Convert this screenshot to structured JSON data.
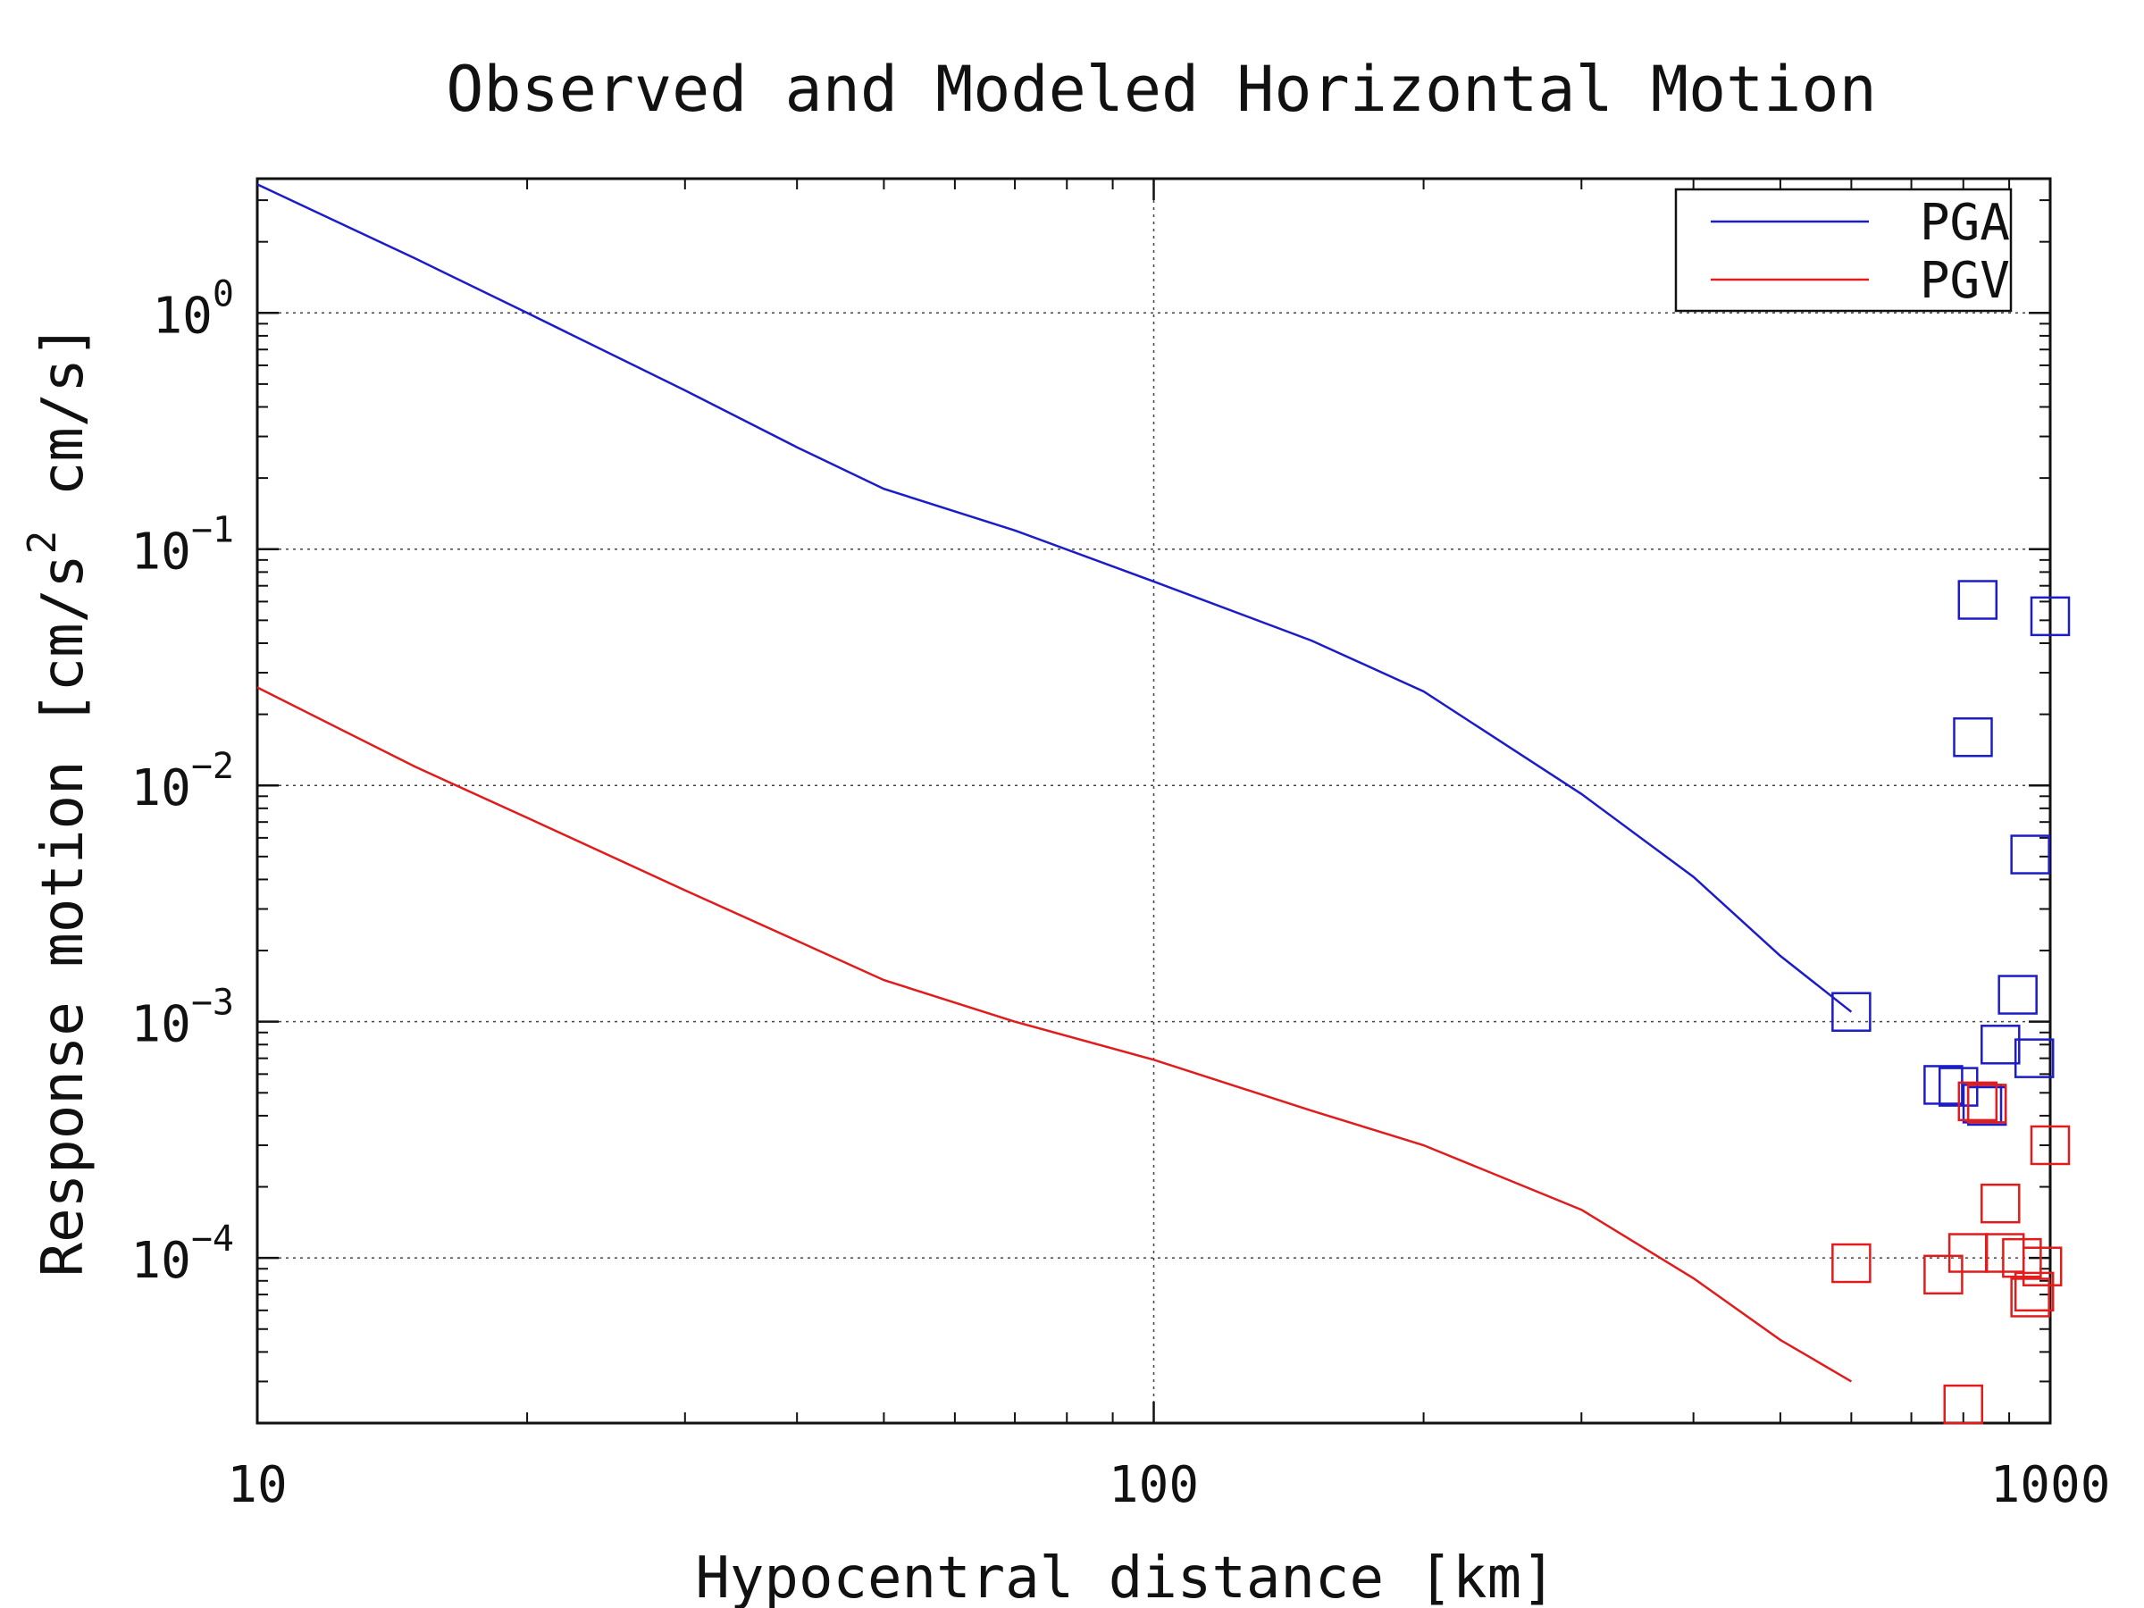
{
  "chart_data": {
    "type": "scatter",
    "title": "Observed and Modeled Horizontal Motion",
    "xlabel": "Hypocentral distance [km]",
    "ylabel": "Response motion [cm/s² cm/s]",
    "ylabel_parts": {
      "pre": "Response motion [cm/s",
      "sup": "2",
      "post": " cm/s]"
    },
    "x_scale": "log",
    "y_scale": "log",
    "xlim": [
      10,
      1000
    ],
    "ylim": [
      2e-05,
      3.7
    ],
    "x_ticks": [
      {
        "value": 10,
        "label": "10"
      },
      {
        "value": 100,
        "label": "100"
      },
      {
        "value": 1000,
        "label": "1000"
      }
    ],
    "y_ticks": [
      {
        "value": 1,
        "base": "10",
        "exp": "0"
      },
      {
        "value": 0.1,
        "base": "10",
        "exp": "−1"
      },
      {
        "value": 0.01,
        "base": "10",
        "exp": "−2"
      },
      {
        "value": 0.001,
        "base": "10",
        "exp": "−3"
      },
      {
        "value": 0.0001,
        "base": "10",
        "exp": "−4"
      }
    ],
    "grid": true,
    "legend_position": "top-right",
    "series": [
      {
        "name": "PGA",
        "color": "#1c1cc8",
        "line": {
          "x": [
            10,
            15,
            20,
            30,
            40,
            50,
            70,
            100,
            150,
            200,
            300,
            400,
            500,
            600
          ],
          "y": [
            3.5,
            1.7,
            1.0,
            0.47,
            0.27,
            0.18,
            0.12,
            0.073,
            0.041,
            0.025,
            0.0092,
            0.0041,
            0.0019,
            0.0011
          ]
        },
        "observed": {
          "x": [
            600,
            760,
            790,
            820,
            830,
            840,
            850,
            880,
            920,
            950,
            960,
            1000
          ],
          "y": [
            0.0011,
            0.00054,
            0.00053,
            0.016,
            0.061,
            0.00045,
            0.00044,
            0.0008,
            0.0013,
            0.0051,
            0.0007,
            0.052
          ]
        }
      },
      {
        "name": "PGV",
        "color": "#e01c1c",
        "line": {
          "x": [
            10,
            15,
            20,
            30,
            40,
            50,
            70,
            100,
            150,
            200,
            300,
            400,
            500,
            600
          ],
          "y": [
            0.026,
            0.012,
            0.0073,
            0.0036,
            0.0022,
            0.0015,
            0.001,
            0.00069,
            0.00042,
            0.0003,
            0.00016,
            8.2e-05,
            4.5e-05,
            3e-05
          ]
        },
        "observed": {
          "x": [
            600,
            760,
            800,
            810,
            830,
            850,
            880,
            890,
            930,
            950,
            960,
            980,
            1000
          ],
          "y": [
            9.5e-05,
            8.5e-05,
            2.4e-05,
            0.000105,
            0.00046,
            0.00045,
            0.00017,
            0.000105,
            0.0001,
            6.8e-05,
            7.2e-05,
            9.2e-05,
            0.0003
          ]
        }
      }
    ]
  }
}
